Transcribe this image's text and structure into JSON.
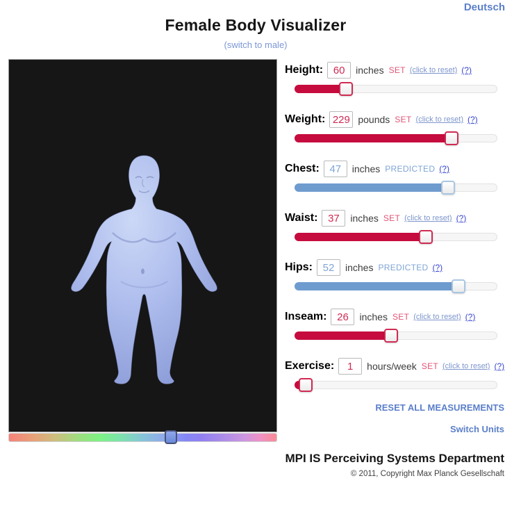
{
  "header": {
    "language_link": "Deutsch",
    "title": "Female Body Visualizer",
    "subtitle": "(switch to male)"
  },
  "sliders": [
    {
      "id": "height",
      "label": "Height:",
      "value": "60",
      "unit": "inches",
      "status": "SET",
      "reset_label": "(click to reset)",
      "help_label": "(?)",
      "type": "set",
      "percent": 25.3
    },
    {
      "id": "weight",
      "label": "Weight:",
      "value": "229",
      "unit": "pounds",
      "status": "SET",
      "reset_label": "(click to reset)",
      "help_label": "(?)",
      "type": "set",
      "percent": 77.7
    },
    {
      "id": "chest",
      "label": "Chest:",
      "value": "47",
      "unit": "inches",
      "status": "PREDICTED",
      "reset_label": "",
      "help_label": "(?)",
      "type": "predicted",
      "percent": 75.7
    },
    {
      "id": "waist",
      "label": "Waist:",
      "value": "37",
      "unit": "inches",
      "status": "SET",
      "reset_label": "(click to reset)",
      "help_label": "(?)",
      "type": "set",
      "percent": 64.7
    },
    {
      "id": "hips",
      "label": "Hips:",
      "value": "52",
      "unit": "inches",
      "status": "PREDICTED",
      "reset_label": "",
      "help_label": "(?)",
      "type": "predicted",
      "percent": 81.2
    },
    {
      "id": "inseam",
      "label": "Inseam:",
      "value": "26",
      "unit": "inches",
      "status": "SET",
      "reset_label": "(click to reset)",
      "help_label": "(?)",
      "type": "set",
      "percent": 47.6
    },
    {
      "id": "exercise",
      "label": "Exercise:",
      "value": "1",
      "unit": "hours/week",
      "status": "SET",
      "reset_label": "(click to reset)",
      "help_label": "(?)",
      "type": "set",
      "percent": 5.1
    }
  ],
  "actions": {
    "reset_all": "RESET ALL MEASUREMENTS",
    "switch_units": "Switch Units"
  },
  "color_slider": {
    "percent": 60.4
  },
  "footer": {
    "department": "MPI IS Perceiving Systems Department",
    "copyright": "© 2011, Copyright Max Planck Gesellschaft"
  },
  "colors": {
    "set_fill": "#c60c3e",
    "set_text": "#e25477",
    "set_value": "#d02a52",
    "predicted_fill": "#6f9ccf",
    "predicted_text": "#7fa5d6",
    "link_muted": "#7d95cc",
    "link_help": "#3847cf",
    "action_blue": "#5b7fc9",
    "subtitle_blue": "#7b96d4",
    "canvas_bg": "#161616",
    "body_tint": "#aab9ea"
  }
}
